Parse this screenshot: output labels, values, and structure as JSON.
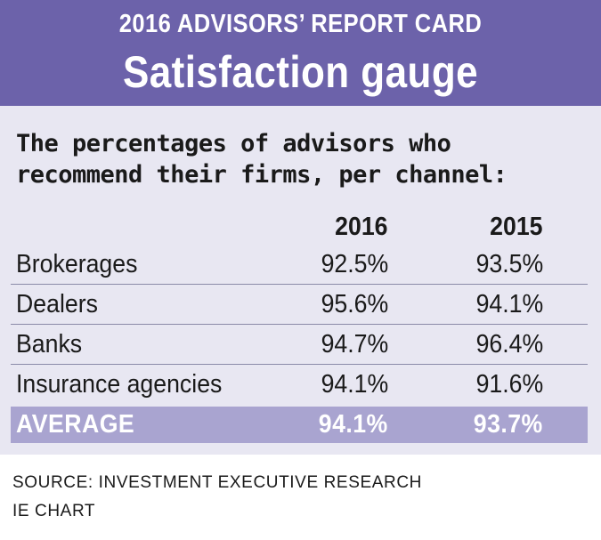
{
  "header": {
    "kicker": "2016 ADVISORS’ REPORT CARD",
    "title": "Satisfaction gauge"
  },
  "intro": "The percentages of advisors who recommend their firms, per channel:",
  "chart_data": {
    "type": "table",
    "columns": [
      "2016",
      "2015"
    ],
    "rows": [
      {
        "label": "Brokerages",
        "v2016": "92.5%",
        "v2015": "93.5%"
      },
      {
        "label": "Dealers",
        "v2016": "95.6%",
        "v2015": "94.1%"
      },
      {
        "label": "Banks",
        "v2016": "94.7%",
        "v2015": "96.4%"
      },
      {
        "label": "Insurance agencies",
        "v2016": "94.1%",
        "v2015": "91.6%"
      }
    ],
    "average": {
      "label": "AVERAGE",
      "v2016": "94.1%",
      "v2015": "93.7%"
    }
  },
  "footer": {
    "source": "SOURCE: INVESTMENT EXECUTIVE RESEARCH",
    "credit": "IE CHART"
  },
  "colors": {
    "header_bg": "#6c62aa",
    "panel_bg": "#e8e7f2",
    "average_bg": "#a9a4d0"
  }
}
